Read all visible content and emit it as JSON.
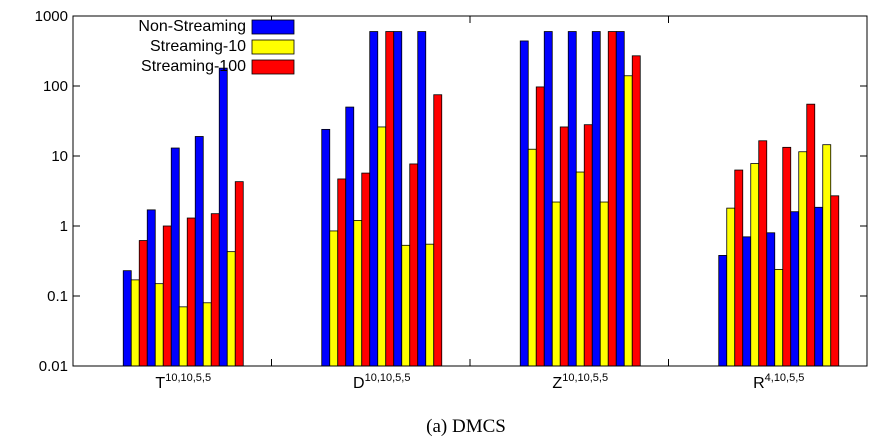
{
  "caption": "(a) DMCS",
  "chart_data": {
    "type": "bar",
    "yscale": "log",
    "ylim": [
      0.01,
      1000
    ],
    "grid": false,
    "legend_position": "top-left",
    "yticks": [
      "0.01",
      "0.1",
      "1",
      "10",
      "100",
      "1000"
    ],
    "categories": [
      {
        "base": "T",
        "sup": "10,10,5,5"
      },
      {
        "base": "D",
        "sup": "10,10,5,5"
      },
      {
        "base": "Z",
        "sup": "10,10,5,5"
      },
      {
        "base": "R",
        "sup": "4,10,5,5"
      }
    ],
    "series": [
      {
        "name": "Non-Streaming",
        "color": "#0000ff"
      },
      {
        "name": "Streaming-10",
        "color": "#ffff00"
      },
      {
        "name": "Streaming-100",
        "color": "#ff0000"
      }
    ],
    "groups": [
      {
        "category": "T",
        "bars": [
          {
            "s": 0,
            "v": 0.23
          },
          {
            "s": 1,
            "v": 0.17
          },
          {
            "s": 2,
            "v": 0.62
          },
          {
            "s": 0,
            "v": 1.7
          },
          {
            "s": 1,
            "v": 0.15
          },
          {
            "s": 2,
            "v": 1.0
          },
          {
            "s": 0,
            "v": 13
          },
          {
            "s": 1,
            "v": 0.07
          },
          {
            "s": 2,
            "v": 1.3
          },
          {
            "s": 0,
            "v": 19
          },
          {
            "s": 1,
            "v": 0.08
          },
          {
            "s": 2,
            "v": 1.5
          },
          {
            "s": 0,
            "v": 180
          },
          {
            "s": 1,
            "v": 0.43
          },
          {
            "s": 2,
            "v": 4.3
          }
        ]
      },
      {
        "category": "D",
        "bars": [
          {
            "s": 0,
            "v": 24
          },
          {
            "s": 1,
            "v": 0.85
          },
          {
            "s": 2,
            "v": 4.7
          },
          {
            "s": 0,
            "v": 50
          },
          {
            "s": 1,
            "v": 1.2
          },
          {
            "s": 2,
            "v": 5.7
          },
          {
            "s": 0,
            "v": 600
          },
          {
            "s": 1,
            "v": 26
          },
          {
            "s": 2,
            "v": 600
          },
          {
            "s": 0,
            "v": 600
          },
          {
            "s": 1,
            "v": 0.53
          },
          {
            "s": 2,
            "v": 7.7
          },
          {
            "s": 0,
            "v": 600
          },
          {
            "s": 1,
            "v": 0.55
          },
          {
            "s": 2,
            "v": 75
          }
        ]
      },
      {
        "category": "Z",
        "bars": [
          {
            "s": 0,
            "v": 440
          },
          {
            "s": 1,
            "v": 12.5
          },
          {
            "s": 2,
            "v": 97
          },
          {
            "s": 0,
            "v": 600
          },
          {
            "s": 1,
            "v": 2.2
          },
          {
            "s": 2,
            "v": 26
          },
          {
            "s": 0,
            "v": 600
          },
          {
            "s": 1,
            "v": 5.9
          },
          {
            "s": 2,
            "v": 28
          },
          {
            "s": 0,
            "v": 600
          },
          {
            "s": 1,
            "v": 2.2
          },
          {
            "s": 2,
            "v": 600
          },
          {
            "s": 0,
            "v": 600
          },
          {
            "s": 1,
            "v": 140
          },
          {
            "s": 2,
            "v": 270
          }
        ]
      },
      {
        "category": "R",
        "bars": [
          {
            "s": 0,
            "v": 0.38
          },
          {
            "s": 1,
            "v": 1.8
          },
          {
            "s": 2,
            "v": 6.3
          },
          {
            "s": 0,
            "v": 0.7
          },
          {
            "s": 1,
            "v": 7.8
          },
          {
            "s": 2,
            "v": 16.5
          },
          {
            "s": 0,
            "v": 0.8
          },
          {
            "s": 1,
            "v": 0.24
          },
          {
            "s": 2,
            "v": 13.3
          },
          {
            "s": 0,
            "v": 1.6
          },
          {
            "s": 1,
            "v": 11.5
          },
          {
            "s": 2,
            "v": 55
          },
          {
            "s": 0,
            "v": 1.85
          },
          {
            "s": 1,
            "v": 14.5
          },
          {
            "s": 2,
            "v": 2.7
          }
        ]
      }
    ]
  }
}
